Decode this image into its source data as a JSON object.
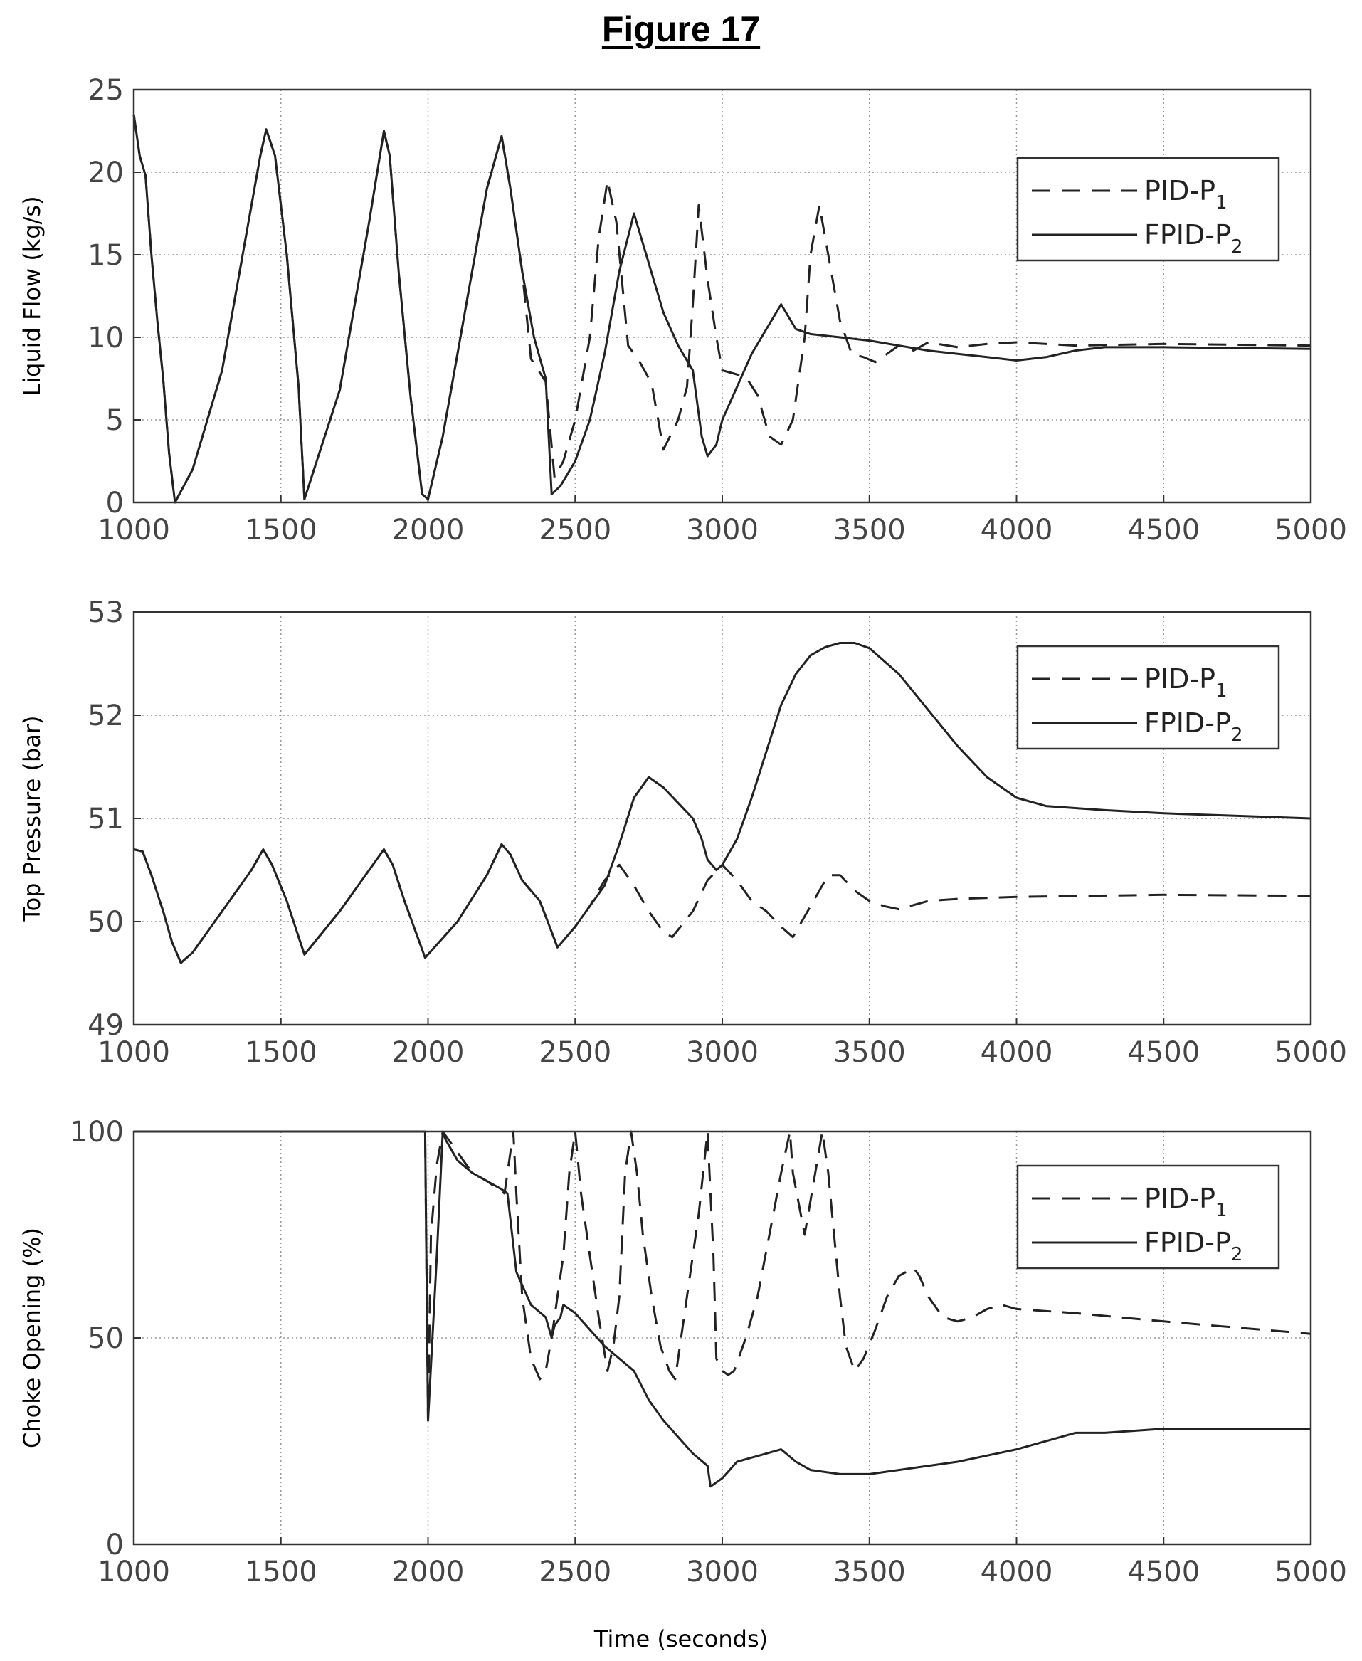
{
  "figure_title": "Figure 17",
  "x_label": "Time (seconds)",
  "colors": {
    "axes": "#333333",
    "grid": "#9a9a9a",
    "line": "#222222",
    "background": "#ffffff"
  },
  "chart_data": [
    {
      "type": "line",
      "ylabel": "Liquid Flow (kg/s)",
      "xlim": [
        1000,
        5000
      ],
      "ylim": [
        0,
        25
      ],
      "xticks": [
        1000,
        1500,
        2000,
        2500,
        3000,
        3500,
        4000,
        4500,
        5000
      ],
      "yticks": [
        0,
        5,
        10,
        15,
        20,
        25
      ],
      "grid": true,
      "legend_position": "top-right",
      "series": [
        {
          "name": "PID-P1",
          "label_main": "PID-P",
          "label_sub": "1",
          "style": "dashed",
          "x": [
            1000,
            1020,
            1040,
            1060,
            1080,
            1100,
            1120,
            1140,
            1200,
            1300,
            1400,
            1430,
            1450,
            1480,
            1520,
            1560,
            1580,
            1700,
            1800,
            1850,
            1870,
            1900,
            1940,
            1980,
            2000,
            2050,
            2100,
            2150,
            2200,
            2250,
            2280,
            2320,
            2350,
            2400,
            2430,
            2460,
            2500,
            2550,
            2580,
            2610,
            2640,
            2680,
            2720,
            2760,
            2800,
            2850,
            2880,
            2900,
            2920,
            2950,
            2980,
            3000,
            3040,
            3080,
            3120,
            3160,
            3200,
            3240,
            3280,
            3300,
            3330,
            3360,
            3400,
            3440,
            3480,
            3520,
            3560,
            3600,
            3650,
            3700,
            3800,
            3900,
            4000,
            4200,
            4500,
            5000
          ],
          "y": [
            23.5,
            21,
            19.8,
            15,
            11,
            7.5,
            3,
            0,
            2,
            8,
            18,
            21,
            22.6,
            21,
            15,
            7,
            0.2,
            6.8,
            17,
            22.5,
            21,
            14,
            6.5,
            0.5,
            0.2,
            4,
            9,
            14,
            19,
            22.2,
            19,
            14,
            8.7,
            7.3,
            1.5,
            2.5,
            5,
            10,
            16,
            19.5,
            17,
            9.5,
            8.5,
            7.2,
            3.2,
            5,
            7,
            12,
            18,
            13.5,
            10,
            8,
            7.8,
            7.6,
            6.5,
            4,
            3.5,
            5,
            10,
            15,
            18,
            15,
            11,
            9,
            8.8,
            8.5,
            9,
            9.5,
            9.2,
            9.7,
            9.4,
            9.6,
            9.7,
            9.5,
            9.6,
            9.5
          ]
        },
        {
          "name": "FPID-P2",
          "label_main": "FPID-P",
          "label_sub": "2",
          "style": "solid",
          "x": [
            1000,
            1020,
            1040,
            1060,
            1080,
            1100,
            1120,
            1140,
            1200,
            1300,
            1400,
            1430,
            1450,
            1480,
            1520,
            1560,
            1580,
            1700,
            1800,
            1850,
            1870,
            1900,
            1940,
            1980,
            2000,
            2050,
            2100,
            2150,
            2200,
            2250,
            2280,
            2320,
            2360,
            2400,
            2420,
            2450,
            2500,
            2550,
            2600,
            2650,
            2700,
            2750,
            2800,
            2850,
            2900,
            2930,
            2950,
            2980,
            3000,
            3050,
            3100,
            3150,
            3200,
            3250,
            3300,
            3400,
            3500,
            3600,
            3700,
            3800,
            3900,
            4000,
            4100,
            4200,
            4300,
            4500,
            5000
          ],
          "y": [
            23.5,
            21,
            19.8,
            15,
            11,
            7.5,
            3,
            0,
            2,
            8,
            18,
            21,
            22.6,
            21,
            15,
            7,
            0.2,
            6.8,
            17,
            22.5,
            21,
            14,
            6.5,
            0.5,
            0.2,
            4,
            9,
            14,
            19,
            22.2,
            19,
            14,
            10,
            7.5,
            0.5,
            1,
            2.5,
            5,
            9,
            14,
            17.5,
            14.5,
            11.5,
            9.5,
            8,
            4,
            2.8,
            3.5,
            5,
            7,
            9,
            10.5,
            12,
            10.5,
            10.2,
            10,
            9.8,
            9.5,
            9.2,
            9,
            8.8,
            8.6,
            8.8,
            9.2,
            9.4,
            9.4,
            9.3
          ]
        }
      ]
    },
    {
      "type": "line",
      "ylabel": "Top Pressure (bar)",
      "xlim": [
        1000,
        5000
      ],
      "ylim": [
        49,
        53
      ],
      "xticks": [
        1000,
        1500,
        2000,
        2500,
        3000,
        3500,
        4000,
        4500,
        5000
      ],
      "yticks": [
        49,
        50,
        51,
        52,
        53
      ],
      "grid": true,
      "legend_position": "top-right",
      "series": [
        {
          "name": "PID-P1",
          "label_main": "PID-P",
          "label_sub": "1",
          "style": "dashed",
          "x": [
            1000,
            1030,
            1060,
            1100,
            1130,
            1160,
            1200,
            1300,
            1400,
            1440,
            1470,
            1520,
            1580,
            1700,
            1800,
            1850,
            1880,
            1920,
            1990,
            2100,
            2200,
            2250,
            2280,
            2320,
            2380,
            2420,
            2440,
            2500,
            2550,
            2600,
            2650,
            2700,
            2750,
            2800,
            2830,
            2900,
            2950,
            3000,
            3050,
            3100,
            3150,
            3200,
            3240,
            3280,
            3320,
            3360,
            3400,
            3450,
            3500,
            3550,
            3600,
            3700,
            3800,
            4000,
            4500,
            5000
          ],
          "y": [
            50.7,
            50.68,
            50.45,
            50.1,
            49.8,
            49.6,
            49.7,
            50.1,
            50.5,
            50.7,
            50.55,
            50.2,
            49.68,
            50.1,
            50.5,
            50.7,
            50.55,
            50.2,
            49.65,
            50,
            50.45,
            50.75,
            50.65,
            50.4,
            50.2,
            49.9,
            49.75,
            49.95,
            50.15,
            50.4,
            50.55,
            50.35,
            50.1,
            49.9,
            49.85,
            50.1,
            50.4,
            50.55,
            50.4,
            50.2,
            50.1,
            49.95,
            49.85,
            50.05,
            50.25,
            50.45,
            50.45,
            50.3,
            50.2,
            50.15,
            50.12,
            50.2,
            50.22,
            50.24,
            50.26,
            50.25
          ]
        },
        {
          "name": "FPID-P2",
          "label_main": "FPID-P",
          "label_sub": "2",
          "style": "solid",
          "x": [
            1000,
            1030,
            1060,
            1100,
            1130,
            1160,
            1200,
            1300,
            1400,
            1440,
            1470,
            1520,
            1580,
            1700,
            1800,
            1850,
            1880,
            1920,
            1990,
            2100,
            2200,
            2250,
            2280,
            2320,
            2380,
            2420,
            2440,
            2500,
            2550,
            2600,
            2650,
            2700,
            2750,
            2800,
            2850,
            2900,
            2930,
            2950,
            2980,
            3000,
            3050,
            3100,
            3150,
            3200,
            3250,
            3300,
            3350,
            3400,
            3450,
            3500,
            3600,
            3700,
            3800,
            3900,
            4000,
            4100,
            4300,
            4500,
            5000
          ],
          "y": [
            50.7,
            50.68,
            50.45,
            50.1,
            49.8,
            49.6,
            49.7,
            50.1,
            50.5,
            50.7,
            50.55,
            50.2,
            49.68,
            50.1,
            50.5,
            50.7,
            50.55,
            50.2,
            49.65,
            50,
            50.45,
            50.75,
            50.65,
            50.4,
            50.2,
            49.9,
            49.75,
            49.95,
            50.15,
            50.35,
            50.75,
            51.2,
            51.4,
            51.3,
            51.15,
            51,
            50.8,
            50.6,
            50.5,
            50.55,
            50.8,
            51.2,
            51.65,
            52.1,
            52.4,
            52.58,
            52.66,
            52.7,
            52.7,
            52.65,
            52.4,
            52.05,
            51.7,
            51.4,
            51.2,
            51.12,
            51.08,
            51.05,
            51
          ]
        }
      ]
    },
    {
      "type": "line",
      "ylabel": "Choke Opening (%)",
      "xlim": [
        1000,
        5000
      ],
      "ylim": [
        0,
        100
      ],
      "xticks": [
        1000,
        1500,
        2000,
        2500,
        3000,
        3500,
        4000,
        4500,
        5000
      ],
      "yticks": [
        0,
        50,
        100
      ],
      "grid": true,
      "legend_position": "top-right",
      "series": [
        {
          "name": "PID-P1",
          "label_main": "PID-P",
          "label_sub": "1",
          "style": "dashed",
          "x": [
            1000,
            1990,
            2000,
            2010,
            2030,
            2050,
            2100,
            2150,
            2200,
            2260,
            2290,
            2300,
            2320,
            2350,
            2380,
            2400,
            2420,
            2440,
            2460,
            2480,
            2500,
            2520,
            2550,
            2580,
            2610,
            2630,
            2650,
            2660,
            2670,
            2690,
            2710,
            2730,
            2760,
            2790,
            2820,
            2840,
            2880,
            2920,
            2950,
            2970,
            2980,
            3000,
            3020,
            3040,
            3080,
            3120,
            3160,
            3200,
            3230,
            3240,
            3280,
            3340,
            3360,
            3380,
            3400,
            3420,
            3450,
            3480,
            3520,
            3560,
            3600,
            3650,
            3670,
            3700,
            3750,
            3800,
            3850,
            3900,
            3950,
            4000,
            4200,
            4500,
            5000
          ],
          "y": [
            100,
            100,
            30,
            75,
            92,
            100,
            95,
            90,
            88,
            85,
            100,
            85,
            60,
            45,
            40,
            42,
            50,
            60,
            70,
            90,
            100,
            85,
            70,
            55,
            42,
            48,
            60,
            75,
            90,
            100,
            90,
            75,
            60,
            48,
            42,
            40,
            60,
            80,
            100,
            70,
            45,
            42,
            41,
            42,
            50,
            60,
            75,
            90,
            100,
            90,
            75,
            100,
            90,
            75,
            60,
            48,
            42,
            45,
            52,
            60,
            65,
            67,
            65,
            60,
            55,
            54,
            55,
            57,
            58,
            57,
            56,
            54,
            51
          ]
        },
        {
          "name": "FPID-P2",
          "label_main": "FPID-P",
          "label_sub": "2",
          "style": "solid",
          "x": [
            1000,
            1990,
            2000,
            2030,
            2050,
            2060,
            2100,
            2150,
            2200,
            2250,
            2270,
            2300,
            2350,
            2400,
            2420,
            2430,
            2450,
            2460,
            2500,
            2550,
            2600,
            2650,
            2700,
            2750,
            2800,
            2850,
            2900,
            2950,
            2960,
            3000,
            3050,
            3100,
            3150,
            3200,
            3250,
            3300,
            3400,
            3500,
            3600,
            3800,
            4000,
            4200,
            4300,
            4500,
            5000
          ],
          "y": [
            100,
            100,
            30,
            70,
            100,
            98,
            93,
            90,
            88,
            86,
            85,
            66,
            58,
            55,
            50,
            53,
            55,
            58,
            56,
            52,
            48,
            45,
            42,
            35,
            30,
            26,
            22,
            19,
            14,
            16,
            20,
            21,
            22,
            23,
            20,
            18,
            17,
            17,
            18,
            20,
            23,
            27,
            27,
            28,
            28
          ]
        }
      ]
    }
  ]
}
